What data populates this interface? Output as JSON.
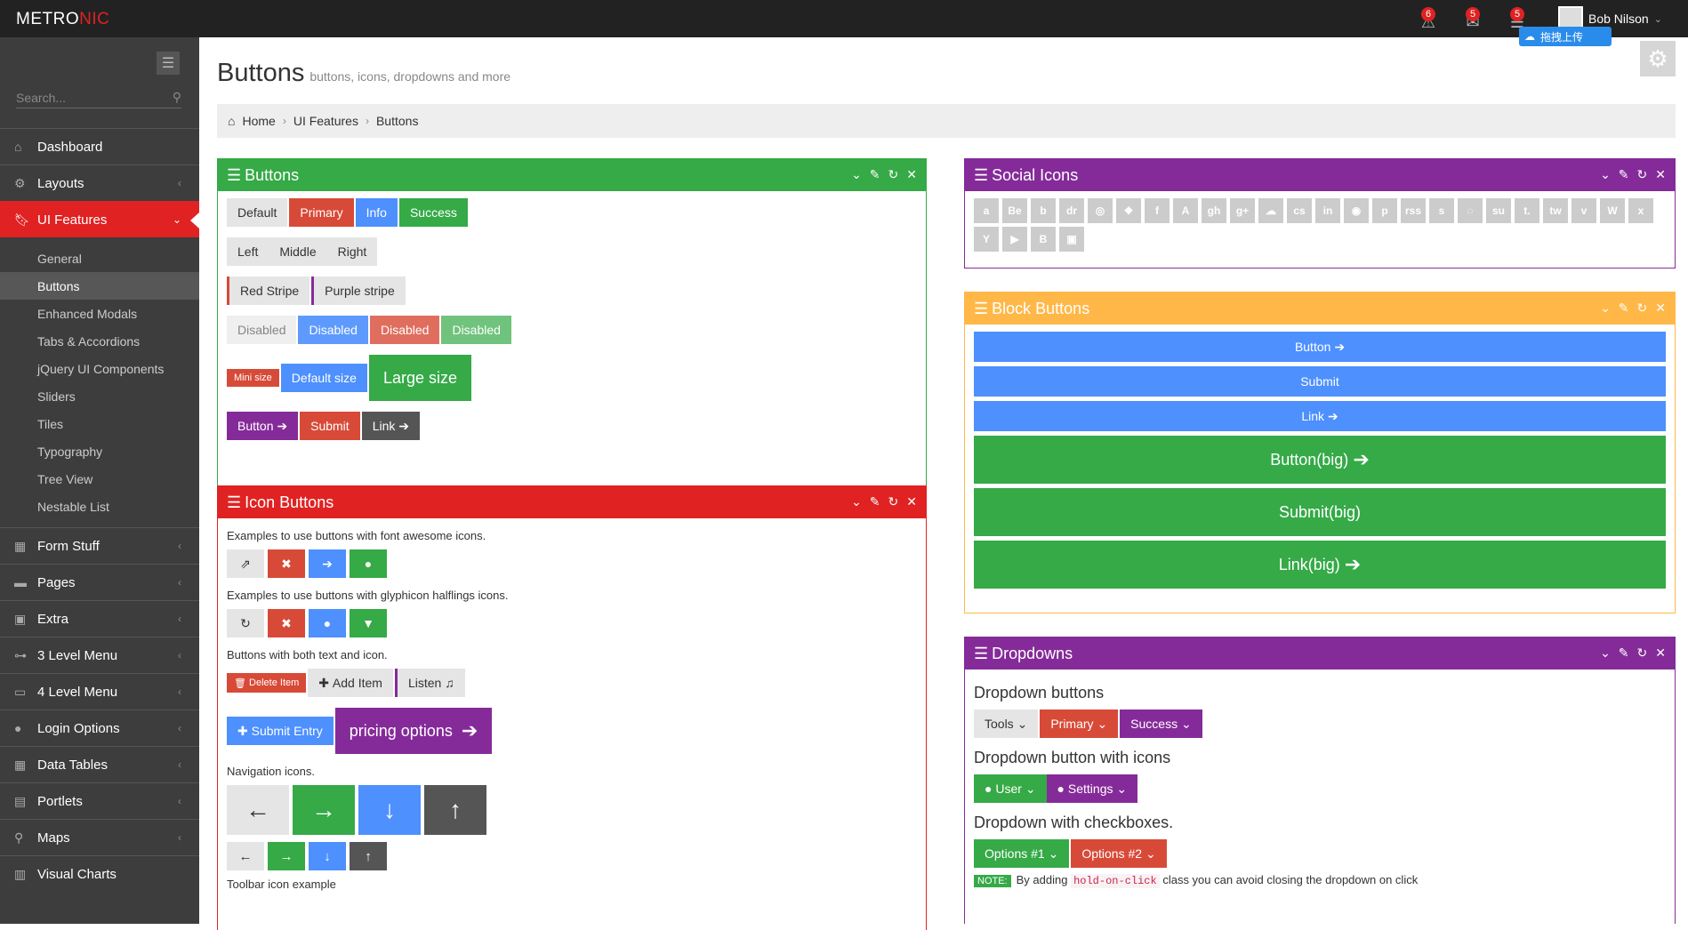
{
  "brand": {
    "text_a": "METRO",
    "text_b": "NIC"
  },
  "topbar": {
    "notif1": "6",
    "notif2": "5",
    "notif3": "5",
    "user_name": "Bob Nilson",
    "upload_label": "拖拽上传"
  },
  "sidebar": {
    "search_placeholder": "Search...",
    "items": [
      {
        "label": "Dashboard",
        "icon": "home-icon"
      },
      {
        "label": "Layouts",
        "icon": "cogs-icon"
      },
      {
        "label": "UI Features",
        "icon": "bookmark-icon"
      },
      {
        "label": "Form Stuff",
        "icon": "table-icon"
      },
      {
        "label": "Pages",
        "icon": "briefcase-icon"
      },
      {
        "label": "Extra",
        "icon": "gift-icon"
      },
      {
        "label": "3 Level Menu",
        "icon": "sitemap-icon"
      },
      {
        "label": "4 Level Menu",
        "icon": "folder-open-icon"
      },
      {
        "label": "Login Options",
        "icon": "user-icon"
      },
      {
        "label": "Data Tables",
        "icon": "th-icon"
      },
      {
        "label": "Portlets",
        "icon": "file-icon"
      },
      {
        "label": "Maps",
        "icon": "map-marker-icon"
      },
      {
        "label": "Visual Charts",
        "icon": "bar-chart-icon"
      }
    ],
    "sub_items": [
      "General",
      "Buttons",
      "Enhanced Modals",
      "Tabs & Accordions",
      "jQuery UI Components",
      "Sliders",
      "Tiles",
      "Typography",
      "Tree View",
      "Nestable List"
    ]
  },
  "page": {
    "title": "Buttons",
    "subtitle": "buttons, icons, dropdowns and more"
  },
  "breadcrumb": [
    "Home",
    "UI Features",
    "Buttons"
  ],
  "buttons_portlet": {
    "title": "Buttons",
    "row1": [
      "Default",
      "Primary",
      "Info",
      "Success"
    ],
    "row2": [
      "Left",
      "Middle",
      "Right"
    ],
    "row3": [
      "Red Stripe",
      "Purple stripe"
    ],
    "row4": [
      "Disabled",
      "Disabled",
      "Disabled",
      "Disabled"
    ],
    "row5": [
      "Mini size",
      "Default size",
      "Large size"
    ],
    "row6": [
      "Button",
      "Submit",
      "Link"
    ]
  },
  "icon_portlet": {
    "title": "Icon Buttons",
    "t1": "Examples to use buttons with font awesome icons.",
    "t2": "Examples to use buttons with glyphicon halflings icons.",
    "t3": "Buttons with both text and icon.",
    "delete": "Delete Item",
    "add": "Add Item",
    "listen": "Listen",
    "submit": "Submit Entry",
    "pricing": "pricing options",
    "t4": "Navigation icons.",
    "t5": "Toolbar icon example"
  },
  "social_portlet": {
    "title": "Social Icons",
    "icons": [
      "a",
      "Be",
      "b",
      "dr",
      "◎",
      "❖",
      "f",
      "A",
      "gh",
      "g+",
      "☁",
      "cs",
      "in",
      "◉",
      "p",
      "rss",
      "s",
      "◌",
      "su",
      "t.",
      "tw",
      "v",
      "W",
      "x",
      "Y",
      "▶",
      "B",
      "▣"
    ]
  },
  "block_portlet": {
    "title": "Block Buttons",
    "small": [
      "Button",
      "Submit",
      "Link"
    ],
    "big": [
      "Button(big)",
      "Submit(big)",
      "Link(big)"
    ]
  },
  "dropdown_portlet": {
    "title": "Dropdowns",
    "h1": "Dropdown buttons",
    "b1": [
      "Tools",
      "Primary",
      "Success"
    ],
    "h2": "Dropdown button with icons",
    "b2": [
      "User",
      "Settings"
    ],
    "h3": "Dropdown with checkboxes.",
    "b3": [
      "Options #1",
      "Options #2"
    ],
    "note_label": "NOTE:",
    "note_pre": "By adding",
    "note_code": "hold-on-click",
    "note_post": "class you can avoid closing the dropdown on click"
  }
}
